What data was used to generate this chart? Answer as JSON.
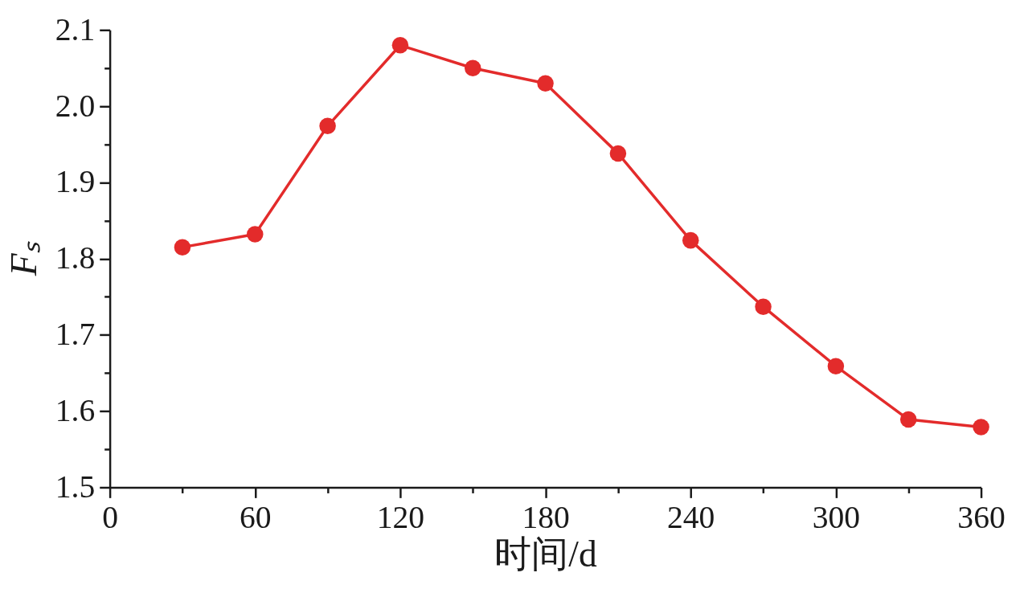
{
  "chart_data": {
    "type": "line",
    "xlabel": "时间/d",
    "ylabel": "Fₛ",
    "x": [
      30,
      60,
      90,
      120,
      150,
      180,
      210,
      240,
      270,
      300,
      330,
      360
    ],
    "series": [
      {
        "color": "#e32b2b",
        "values": [
          1.815,
          1.832,
          1.974,
          2.08,
          2.05,
          2.03,
          1.938,
          1.824,
          1.737,
          1.659,
          1.589,
          1.579
        ]
      }
    ],
    "xlim": [
      0,
      360
    ],
    "xticks": [
      0,
      {
        "value": 30,
        "label": null
      },
      60,
      {
        "value": 90,
        "label": null
      },
      120,
      {
        "value": 150,
        "label": null
      },
      180,
      {
        "value": 210,
        "label": null
      },
      240,
      {
        "value": 270,
        "label": null
      },
      300,
      {
        "value": 330,
        "label": null
      },
      360
    ],
    "ylim": [
      1.5,
      2.1
    ],
    "yticks": [
      1.5,
      {
        "value": 1.55,
        "label": null
      },
      1.6,
      {
        "value": 1.65,
        "label": null
      },
      1.7,
      {
        "value": 1.75,
        "label": null
      },
      1.8,
      {
        "value": 1.85,
        "label": null
      },
      1.9,
      {
        "value": 1.95,
        "label": null
      },
      {
        "value": 2.0,
        "label": "2.0"
      },
      {
        "value": 2.05,
        "label": null
      },
      2.1
    ],
    "marker": "circle",
    "line_style": "solid"
  }
}
